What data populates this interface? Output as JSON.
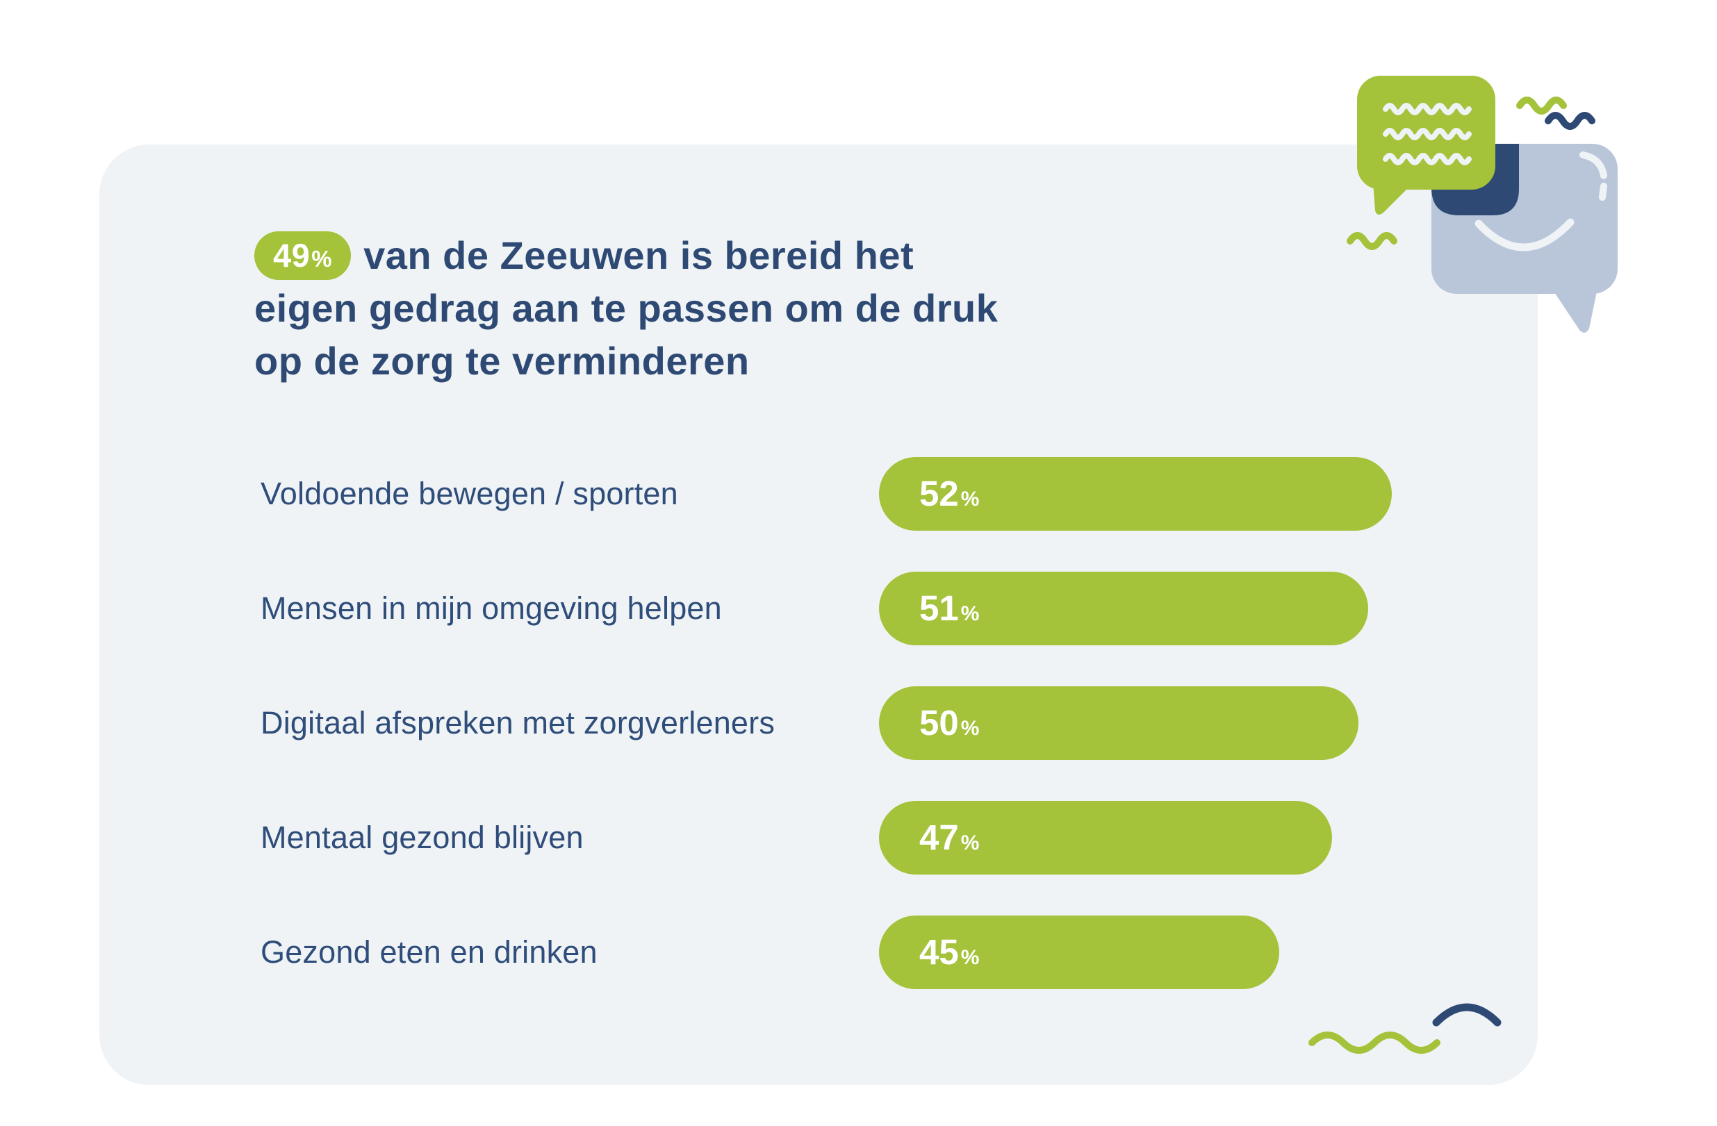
{
  "colors": {
    "background": "#ffffff",
    "card": "#eff3f5",
    "green": "#a4c23a",
    "navy": "#2e4a74",
    "bubble_light_blue": "#b9c6da",
    "bubble_line_white": "#eef3f6",
    "bar_value_text": "#ffffff"
  },
  "title": {
    "badge_value": "49",
    "badge_unit": "%",
    "lines": [
      "van de Zeeuwen is bereid het",
      "eigen gedrag aan te passen om de druk",
      "op de zorg te verminderen"
    ]
  },
  "chart_data": {
    "type": "bar",
    "orientation": "horizontal",
    "categories": [
      "Voldoende bewegen / sporten",
      "Mensen in mijn omgeving helpen",
      "Digitaal afspreken met zorgverleners",
      "Mentaal gezond blijven",
      "Gezond eten en drinken"
    ],
    "values": [
      52,
      51,
      50,
      47,
      45
    ],
    "unit": "%",
    "value_axis_range": [
      0,
      52
    ],
    "grid": false,
    "legend": false,
    "bar_color": "#a4c23a",
    "label_color": "#2f4d7a",
    "bar_pixel_widths": [
      738,
      704,
      690,
      652,
      576
    ]
  },
  "decorations": {
    "top_right": "overlapping-chat-speech-bubbles-with-wavy-text-and-smile",
    "top_right_accents": [
      "green-squiggle",
      "navy-squiggle",
      "green-squiggle-left"
    ],
    "bottom_right_accents": [
      "green-squiggle",
      "navy-arc"
    ]
  }
}
